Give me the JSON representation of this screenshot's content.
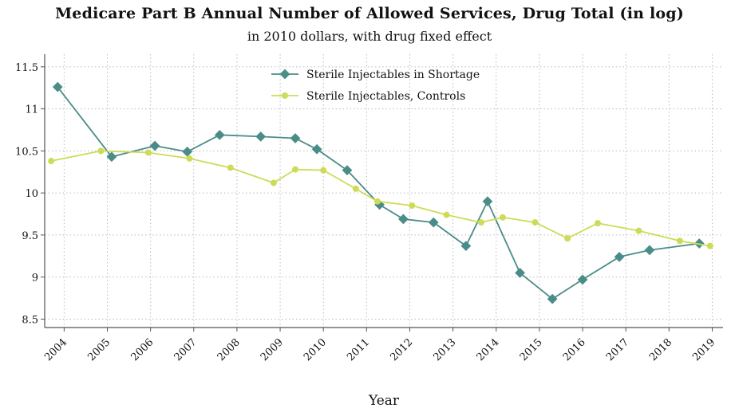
{
  "chart_data": {
    "type": "line",
    "title": "Medicare Part B Annual Number of Allowed Services, Drug Total (in log)",
    "subtitle": "in 2010 dollars, with drug fixed effect",
    "xlabel": "Year",
    "ylabel": "",
    "x_ticks": [
      "2004",
      "2005",
      "2006",
      "2007",
      "2008",
      "2009",
      "2010",
      "2011",
      "2012",
      "2013",
      "2014",
      "2015",
      "2016",
      "2017",
      "2018",
      "2019"
    ],
    "y_ticks": [
      "8.5",
      "9",
      "9.5",
      "10",
      "10.5",
      "11",
      "11.5"
    ],
    "xlim": [
      2003.55,
      2019.25
    ],
    "ylim": [
      8.4,
      11.65
    ],
    "grid": true,
    "legend_position": "top-center",
    "series": [
      {
        "name": "Sterile Injectables in Shortage",
        "color": "#4a8c88",
        "marker": "diamond",
        "x": [
          2003.85,
          2005.1,
          2006.1,
          2006.85,
          2007.6,
          2008.55,
          2009.35,
          2009.85,
          2010.55,
          2011.3,
          2011.85,
          2012.55,
          2013.3,
          2013.8,
          2014.55,
          2015.3,
          2016.0,
          2016.85,
          2017.55,
          2018.7
        ],
        "y": [
          11.26,
          10.43,
          10.56,
          10.49,
          10.69,
          10.67,
          10.65,
          10.52,
          10.27,
          9.86,
          9.69,
          9.65,
          9.37,
          9.9,
          9.05,
          8.74,
          8.97,
          9.24,
          9.32,
          9.4
        ]
      },
      {
        "name": "Sterile Injectables, Controls",
        "color": "#cedb58",
        "marker": "circle",
        "x": [
          2003.7,
          2004.85,
          2005.95,
          2006.9,
          2007.85,
          2008.85,
          2009.35,
          2010.0,
          2010.75,
          2011.25,
          2012.05,
          2012.85,
          2013.65,
          2014.15,
          2014.9,
          2015.65,
          2016.35,
          2017.3,
          2018.25,
          2018.95
        ],
        "y": [
          10.38,
          10.5,
          10.48,
          10.41,
          10.3,
          10.12,
          10.28,
          10.27,
          10.05,
          9.9,
          9.85,
          9.74,
          9.65,
          9.71,
          9.65,
          9.46,
          9.64,
          9.55,
          9.43,
          9.37
        ]
      }
    ]
  }
}
